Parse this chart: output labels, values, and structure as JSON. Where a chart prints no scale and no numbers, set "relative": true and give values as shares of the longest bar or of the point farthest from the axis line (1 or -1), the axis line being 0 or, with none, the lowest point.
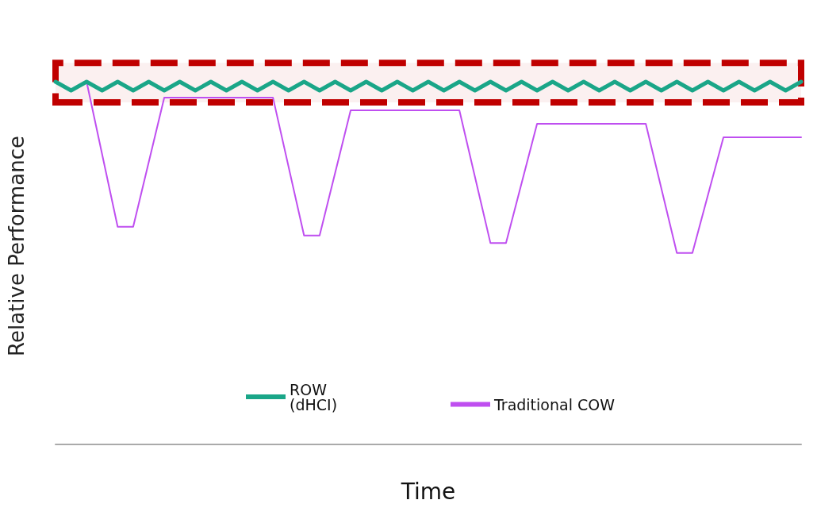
{
  "chart_data": {
    "type": "line",
    "relative": true,
    "xlabel": "Time",
    "ylabel": "Relative Performance",
    "categories": [
      null,
      null,
      null,
      null,
      null,
      null,
      null,
      null,
      null,
      null,
      null,
      null,
      null,
      null,
      null,
      null,
      null,
      null,
      null,
      null,
      null,
      null,
      null,
      null,
      null,
      null,
      null,
      null,
      null,
      null,
      null,
      null,
      null,
      null,
      null,
      null,
      null,
      null,
      null,
      null,
      null,
      null,
      null,
      null,
      null,
      null,
      null,
      null,
      null
    ],
    "series": [
      {
        "name": "ROW (dHCI)",
        "color": "#1aa688",
        "values": [
          1.0,
          0.976,
          1.0,
          0.976,
          1.0,
          0.976,
          1.0,
          0.976,
          1.0,
          0.976,
          1.0,
          0.976,
          1.0,
          0.976,
          1.0,
          0.976,
          1.0,
          0.976,
          1.0,
          0.976,
          1.0,
          0.976,
          1.0,
          0.976,
          1.0,
          0.976,
          1.0,
          0.976,
          1.0,
          0.976,
          1.0,
          0.976,
          1.0,
          0.976,
          1.0,
          0.976,
          1.0,
          0.976,
          1.0,
          0.976,
          1.0,
          0.976,
          1.0,
          0.976,
          1.0,
          0.976,
          1.0,
          0.976,
          1.0
        ]
      },
      {
        "name": "Traditional COW",
        "color": "#bf4ff0",
        "values": [
          null,
          null,
          1.0,
          null,
          0.6,
          0.6,
          null,
          0.956,
          null,
          null,
          null,
          null,
          null,
          null,
          0.956,
          null,
          0.576,
          0.576,
          null,
          0.921,
          null,
          null,
          null,
          null,
          null,
          null,
          0.921,
          null,
          0.555,
          0.555,
          null,
          0.884,
          null,
          null,
          null,
          null,
          null,
          null,
          0.884,
          null,
          0.528,
          0.528,
          null,
          0.847,
          null,
          null,
          null,
          null,
          0.847
        ]
      }
    ],
    "bands": [
      {
        "axis": "y",
        "from": 0.943,
        "to": 1.052,
        "color": "#c00000"
      }
    ],
    "legend": "bottom",
    "marker": "none",
    "grid": false
  }
}
